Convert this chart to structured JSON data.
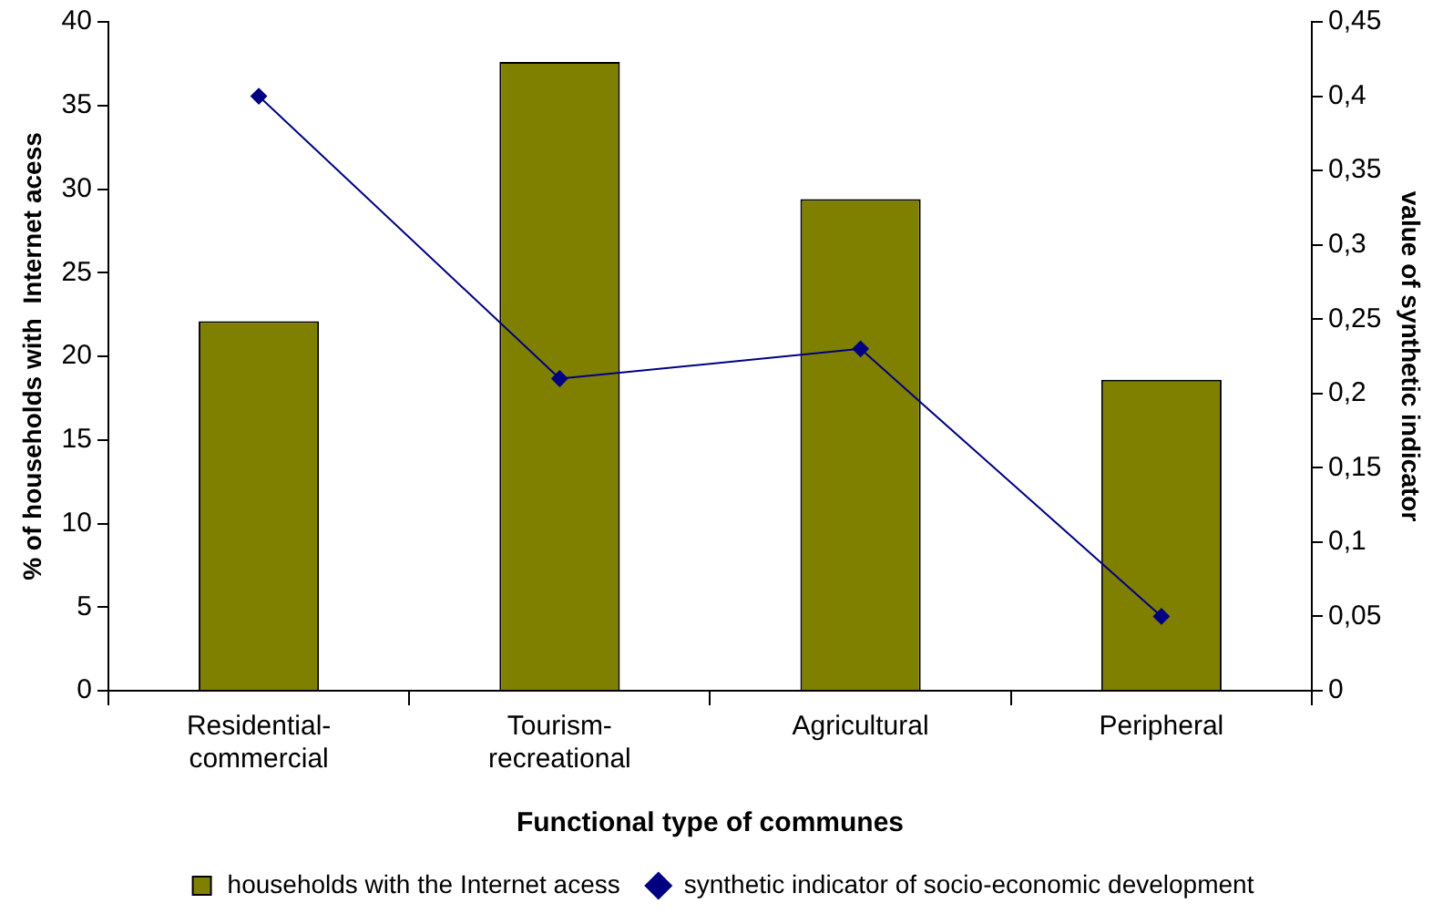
{
  "chart_data": {
    "type": "bar",
    "xlabel": "Functional type of communes",
    "ylabel": "% of households with  Internet acess",
    "y2label": "value of synthetic indicator",
    "categories": [
      "Residential-commercial",
      "Tourism-recreational",
      "Agricultural",
      "Peripheral"
    ],
    "series": [
      {
        "name": "households with the Internet acess",
        "color": "#808000",
        "values": [
          22.1,
          37.6,
          29.4,
          18.6
        ]
      },
      {
        "name": "synthetic indicator of socio-economic development",
        "type": "line",
        "axis": "y2",
        "color": "#000080",
        "marker": "diamond",
        "values": [
          0.4,
          0.21,
          0.23,
          0.05
        ]
      }
    ],
    "ylim": [
      0,
      40
    ],
    "yticks": [
      0,
      5,
      10,
      15,
      20,
      25,
      30,
      35,
      40
    ],
    "y2lim": [
      0,
      0.45
    ],
    "y2ticks": [
      0,
      {
        "value": 0.05,
        "label": "0,05"
      },
      {
        "value": 0.1,
        "label": "0,1"
      },
      {
        "value": 0.15,
        "label": "0,15"
      },
      {
        "value": 0.2,
        "label": "0,2"
      },
      {
        "value": 0.25,
        "label": "0,25"
      },
      {
        "value": 0.3,
        "label": "0,3"
      },
      {
        "value": 0.35,
        "label": "0,35"
      },
      {
        "value": 0.4,
        "label": "0,4"
      },
      {
        "value": 0.45,
        "label": "0,45"
      }
    ],
    "grid": false,
    "legend": "bottom"
  }
}
